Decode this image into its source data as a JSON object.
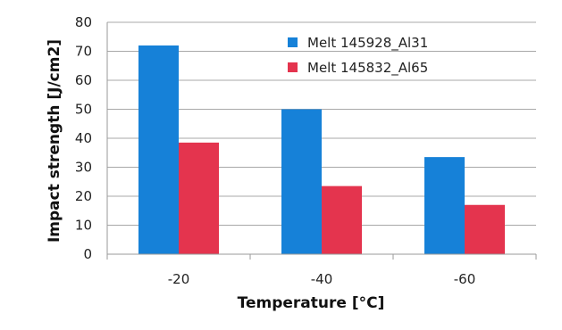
{
  "chart_data": {
    "type": "bar",
    "title": "",
    "xlabel": "Temperature [°C]",
    "ylabel": "Impact strength [J/cm2]",
    "categories": [
      "-20",
      "-40",
      "-60"
    ],
    "ylim": [
      0,
      80
    ],
    "yticks": [
      "0",
      "10",
      "20",
      "30",
      "40",
      "50",
      "60",
      "70",
      "80"
    ],
    "grid": true,
    "legend_position": "top-right",
    "series": [
      {
        "name": "Melt 145928_Al31",
        "values": [
          72,
          50,
          33.5
        ],
        "color": "#1681d8"
      },
      {
        "name": "Melt 145832_Al65",
        "values": [
          38.5,
          23.5,
          17
        ],
        "color": "#e4344e"
      }
    ]
  }
}
